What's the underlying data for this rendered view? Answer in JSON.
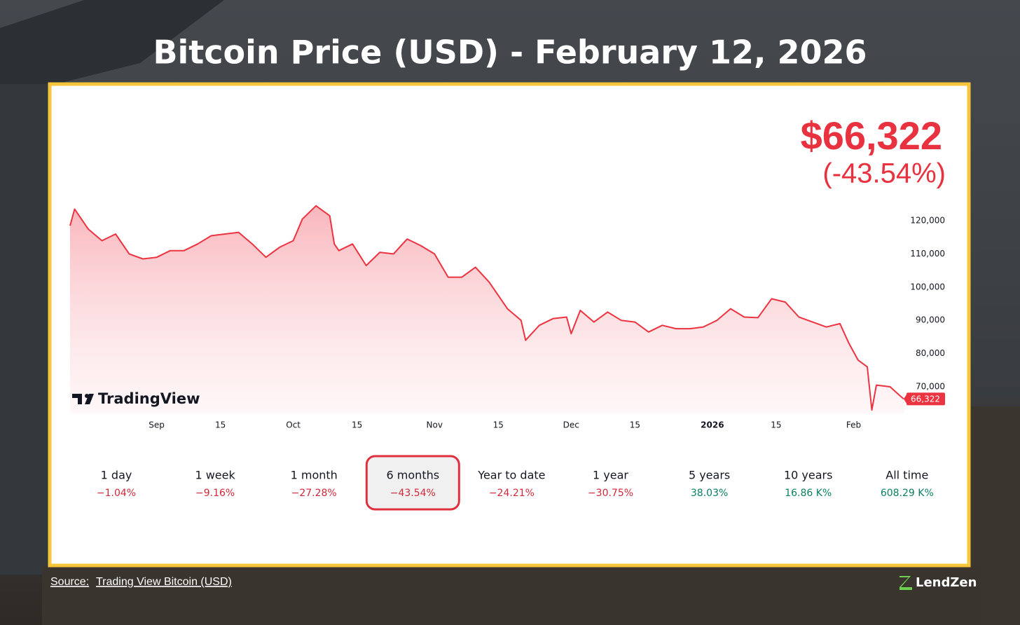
{
  "title": "Bitcoin Price (USD) - February 12, 2026",
  "price": "$66,322",
  "change": "(-43.54%)",
  "logo": "TradingView",
  "source_prefix": "Source:",
  "source_link": "Trading View Bitcoin (USD)",
  "brand": "LendZen",
  "periods": [
    {
      "label": "1 day",
      "change": "−1.04%",
      "color": "#d2283a"
    },
    {
      "label": "1 week",
      "change": "−9.16%",
      "color": "#d2283a"
    },
    {
      "label": "1 month",
      "change": "−27.28%",
      "color": "#d2283a"
    },
    {
      "label": "6 months",
      "change": "−43.54%",
      "color": "#d2283a",
      "selected": true
    },
    {
      "label": "Year to date",
      "change": "−24.21%",
      "color": "#d2283a"
    },
    {
      "label": "1 year",
      "change": "−30.75%",
      "color": "#d2283a"
    },
    {
      "label": "5 years",
      "change": "38.03%",
      "color": "#0a7f63"
    },
    {
      "label": "10 years",
      "change": "16.86 K%",
      "color": "#0a7f63"
    },
    {
      "label": "All time",
      "change": "608.29 K%",
      "color": "#0a7f63"
    }
  ],
  "chart_data": {
    "type": "line",
    "color": "#ec3340",
    "x": [
      "2025-08-13",
      "2025-08-14",
      "2025-08-17",
      "2025-08-20",
      "2025-08-23",
      "2025-08-26",
      "2025-08-29",
      "2025-09-01",
      "2025-09-04",
      "2025-09-07",
      "2025-09-10",
      "2025-09-13",
      "2025-09-16",
      "2025-09-19",
      "2025-09-22",
      "2025-09-25",
      "2025-09-28",
      "2025-10-01",
      "2025-10-03",
      "2025-10-06",
      "2025-10-09",
      "2025-10-10",
      "2025-10-11",
      "2025-10-14",
      "2025-10-17",
      "2025-10-20",
      "2025-10-23",
      "2025-10-26",
      "2025-10-29",
      "2025-11-01",
      "2025-11-04",
      "2025-11-07",
      "2025-11-10",
      "2025-11-13",
      "2025-11-17",
      "2025-11-20",
      "2025-11-21",
      "2025-11-24",
      "2025-11-27",
      "2025-11-30",
      "2025-12-01",
      "2025-12-03",
      "2025-12-06",
      "2025-12-09",
      "2025-12-12",
      "2025-12-15",
      "2025-12-18",
      "2025-12-21",
      "2025-12-24",
      "2025-12-27",
      "2025-12-30",
      "2026-01-02",
      "2026-01-05",
      "2026-01-08",
      "2026-01-11",
      "2026-01-14",
      "2026-01-17",
      "2026-01-20",
      "2026-01-23",
      "2026-01-26",
      "2026-01-29",
      "2026-01-31",
      "2026-02-02",
      "2026-02-04",
      "2026-02-05",
      "2026-02-06",
      "2026-02-09",
      "2026-02-11",
      "2026-02-12"
    ],
    "values": [
      118500,
      123500,
      117500,
      114000,
      116000,
      110000,
      108500,
      109000,
      111000,
      111000,
      113000,
      115500,
      116000,
      116500,
      113000,
      109000,
      112000,
      114000,
      120500,
      124500,
      121500,
      113000,
      111000,
      113000,
      106500,
      110500,
      110000,
      114500,
      112500,
      110000,
      103000,
      103000,
      106000,
      101500,
      93500,
      90000,
      84000,
      88500,
      90500,
      91000,
      86000,
      93000,
      89500,
      92500,
      90000,
      89500,
      86500,
      88500,
      87500,
      87500,
      88000,
      90000,
      93500,
      91000,
      90800,
      96500,
      95500,
      91000,
      89500,
      88000,
      89000,
      83000,
      78000,
      76000,
      63000,
      70500,
      70000,
      67500,
      66322
    ],
    "price_label": "66,322",
    "xlim": [
      "2025-08-13",
      "2026-02-12"
    ],
    "xticks": [
      {
        "value": "2025-09-01",
        "label": "Sep"
      },
      {
        "value": "2025-09-15",
        "label": "15"
      },
      {
        "value": "2025-10-01",
        "label": "Oct"
      },
      {
        "value": "2025-10-15",
        "label": "15"
      },
      {
        "value": "2025-11-01",
        "label": "Nov"
      },
      {
        "value": "2025-11-15",
        "label": "15"
      },
      {
        "value": "2025-12-01",
        "label": "Dec"
      },
      {
        "value": "2025-12-15",
        "label": "15"
      },
      {
        "value": "2026-01-01",
        "label": "2026"
      },
      {
        "value": "2026-01-15",
        "label": "15"
      },
      {
        "value": "2026-02-01",
        "label": "Feb"
      }
    ],
    "ylim": [
      62000,
      126000
    ],
    "yticks": [
      {
        "value": 70000,
        "label": "70,000"
      },
      {
        "value": 80000,
        "label": "80,000"
      },
      {
        "value": 90000,
        "label": "90,000"
      },
      {
        "value": 100000,
        "label": "100,000"
      },
      {
        "value": 110000,
        "label": "110,000"
      },
      {
        "value": 120000,
        "label": "120,000"
      }
    ]
  }
}
